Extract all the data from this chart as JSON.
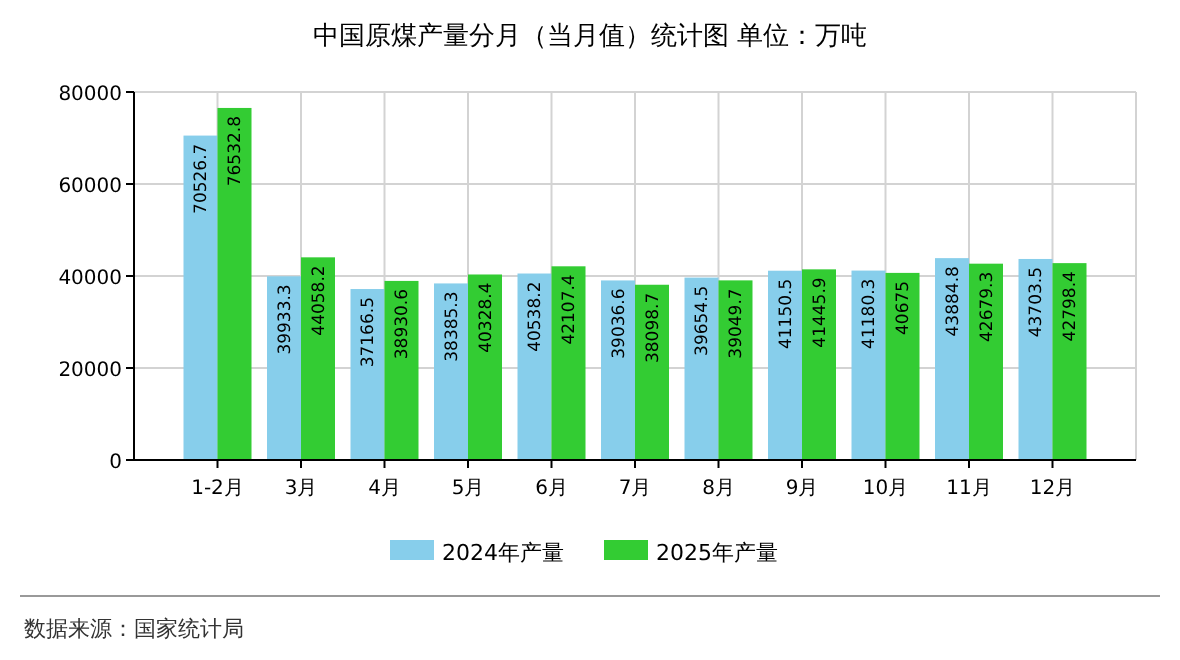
{
  "chart_data": {
    "type": "bar",
    "title": "中国原煤产量分月（当月值）统计图 单位：万吨",
    "categories": [
      "1-2月",
      "3月",
      "4月",
      "5月",
      "6月",
      "7月",
      "8月",
      "9月",
      "10月",
      "11月",
      "12月"
    ],
    "series": [
      {
        "name": "2024年产量",
        "color": "#87ceeb",
        "values": [
          70526.7,
          39933.3,
          37166.5,
          38385.3,
          40538.2,
          39036.6,
          39654.5,
          41150.5,
          41180.3,
          43884.8,
          43703.5
        ]
      },
      {
        "name": "2025年产量",
        "color": "#33cc33",
        "values": [
          76532.8,
          44058.2,
          38930.6,
          40328.4,
          42107.4,
          38098.7,
          39049.7,
          41445.9,
          40675,
          42679.3,
          42798.4
        ]
      }
    ],
    "ylim": [
      0,
      80000
    ],
    "yticks": [
      0,
      20000,
      40000,
      60000,
      80000
    ],
    "grid": true,
    "legend": "bottom",
    "data_labels": true,
    "annotations": [
      "数据来源：国家统计局"
    ]
  }
}
